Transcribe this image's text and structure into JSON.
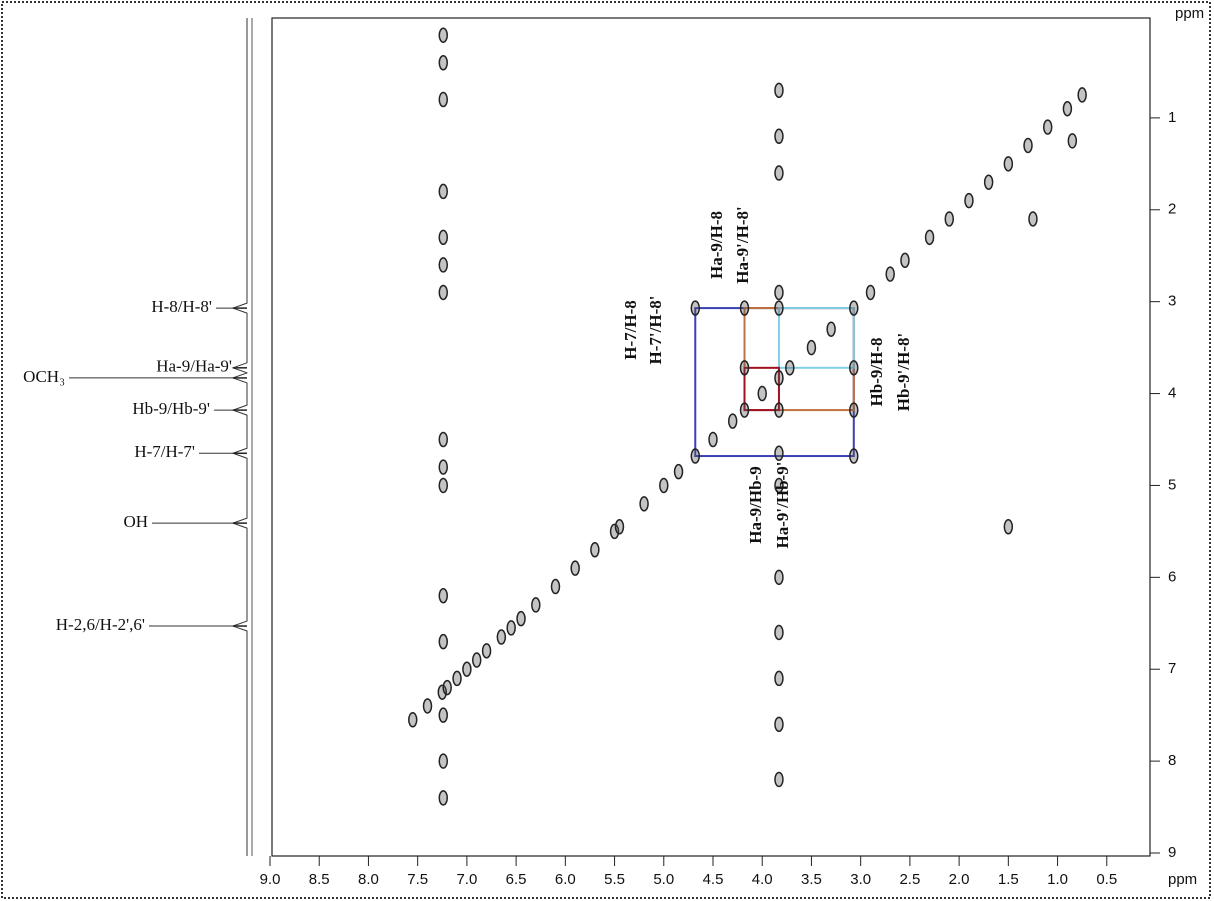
{
  "chart_data": {
    "type": "scatter",
    "xlabel": "ppm",
    "ylabel": "ppm",
    "xlim": [
      9,
      0
    ],
    "ylim": [
      0,
      9
    ],
    "xticks": [
      {
        "value": 9,
        "label": "9.0"
      },
      {
        "value": 8.5,
        "label": "8.5"
      },
      {
        "value": 8,
        "label": "8.0"
      },
      {
        "value": 7.5,
        "label": "7.5"
      },
      {
        "value": 7,
        "label": "7.0"
      },
      {
        "value": 6.5,
        "label": "6.5"
      },
      {
        "value": 6,
        "label": "6.0"
      },
      {
        "value": 5.5,
        "label": "5.5"
      },
      {
        "value": 5,
        "label": "5.0"
      },
      {
        "value": 4.5,
        "label": "4.5"
      },
      {
        "value": 4,
        "label": "4.0"
      },
      {
        "value": 3.5,
        "label": "3.5"
      },
      {
        "value": 3,
        "label": "3.0"
      },
      {
        "value": 2.5,
        "label": "2.5"
      },
      {
        "value": 2,
        "label": "2.0"
      },
      {
        "value": 1.5,
        "label": "1.5"
      },
      {
        "value": 1,
        "label": "1.0"
      },
      {
        "value": 0.5,
        "label": "0.5"
      }
    ],
    "yticks": [
      1,
      2,
      3,
      4,
      5,
      6,
      7,
      8,
      9
    ],
    "color": "#222222",
    "x": [
      7.55,
      7.4,
      7.25,
      7.2,
      7.1,
      7.0,
      6.9,
      6.8,
      6.65,
      6.55,
      6.45,
      6.3,
      6.1,
      5.9,
      5.7,
      5.5,
      5.45,
      5.2,
      5.0,
      4.85,
      4.68,
      4.5,
      4.3,
      4.18,
      4.0,
      3.83,
      3.72,
      3.5,
      3.3,
      3.07,
      2.9,
      2.7,
      2.55,
      2.3,
      2.1,
      1.9,
      1.7,
      1.5,
      1.3,
      1.1,
      0.9,
      0.75,
      7.24,
      7.24,
      7.24,
      7.24,
      7.24,
      7.24,
      7.24,
      7.24,
      7.24,
      7.24,
      7.24,
      7.24,
      7.24,
      7.24,
      7.24,
      3.83,
      3.83,
      3.83,
      3.83,
      3.83,
      3.83,
      3.83,
      3.83,
      3.83,
      3.83,
      3.83,
      4.68,
      3.07,
      4.18,
      3.07,
      3.83,
      3.07,
      4.18,
      3.83,
      0.85,
      1.25,
      1.5
    ],
    "values": [
      7.55,
      7.4,
      7.25,
      7.2,
      7.1,
      7.0,
      6.9,
      6.8,
      6.65,
      6.55,
      6.45,
      6.3,
      6.1,
      5.9,
      5.7,
      5.5,
      5.45,
      5.2,
      5.0,
      4.85,
      4.68,
      4.5,
      4.3,
      4.18,
      4.0,
      3.83,
      3.72,
      3.5,
      3.3,
      3.07,
      2.9,
      2.7,
      2.55,
      2.3,
      2.1,
      1.9,
      1.7,
      1.5,
      1.3,
      1.1,
      0.9,
      0.75,
      0.1,
      0.4,
      0.8,
      1.8,
      2.3,
      2.6,
      2.9,
      4.5,
      4.8,
      5.0,
      6.2,
      6.7,
      7.5,
      8.0,
      8.4,
      0.7,
      1.2,
      1.6,
      2.9,
      5.0,
      6.0,
      6.6,
      7.1,
      7.6,
      8.2,
      4.65,
      3.07,
      4.68,
      3.07,
      4.18,
      3.07,
      3.72,
      3.72,
      4.18,
      1.25,
      2.1,
      5.45
    ],
    "boxes": [
      {
        "color": "#3a3fb2",
        "x": [
          4.68,
          3.07
        ],
        "y": [
          3.07,
          4.68
        ]
      },
      {
        "color": "#c2703c",
        "x": [
          4.18,
          3.07
        ],
        "y": [
          3.07,
          4.18
        ]
      },
      {
        "color": "#80d0ea",
        "x": [
          3.83,
          3.07
        ],
        "y": [
          3.07,
          3.72
        ]
      },
      {
        "color": "#a01020",
        "x": [
          4.18,
          3.83
        ],
        "y": [
          3.72,
          4.18
        ]
      }
    ],
    "annotations": [
      "H-7/H-8",
      "H-7'/H-8'",
      "Ha-9/H-8",
      "Ha-9'/H-8'",
      "Hb-9/H-8",
      "Hb-9'/H-8'",
      "Ha-9/Hb-9",
      "Ha-9'/Hb-9'"
    ],
    "projection": {
      "labels": [
        "H-8/H-8'",
        "Ha-9/Ha-9'",
        "OCH₃",
        "Hb-9/Hb-9'",
        "H-7/H-7'",
        "OH",
        "H-2,6/H-2',6'"
      ],
      "ppm": [
        3.07,
        3.72,
        3.83,
        4.18,
        4.65,
        5.41,
        6.53
      ]
    }
  }
}
